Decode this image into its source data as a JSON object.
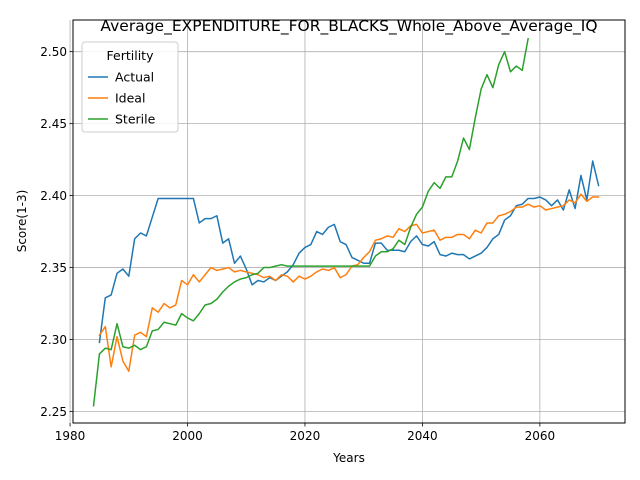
{
  "chart_data": {
    "type": "line",
    "title": "Average_EXPENDITURE_FOR_BLACKS_Whole_Above_Average_IQ",
    "xlabel": "Years",
    "ylabel": "Score(1-3)",
    "xlim": [
      1980.5,
      2074.5
    ],
    "ylim": [
      2.242,
      2.522
    ],
    "xticks": [
      1980,
      2000,
      2020,
      2040,
      2060
    ],
    "yticks": [
      2.25,
      2.3,
      2.35,
      2.4,
      2.45,
      2.5
    ],
    "xtick_labels": [
      "1980",
      "2000",
      "2020",
      "2040",
      "2060"
    ],
    "ytick_labels": [
      "2.25",
      "2.30",
      "2.35",
      "2.40",
      "2.45",
      "2.50"
    ],
    "grid": true,
    "legend": {
      "title": "Fertility",
      "position": "upper-left"
    },
    "series": [
      {
        "name": "Actual",
        "color": "#1f77b4",
        "x": [
          1985,
          1986,
          1987,
          1988,
          1989,
          1990,
          1991,
          1992,
          1993,
          1994,
          1995,
          1996,
          1997,
          1998,
          1999,
          2000,
          2001,
          2002,
          2003,
          2004,
          2005,
          2006,
          2007,
          2008,
          2009,
          2010,
          2011,
          2012,
          2013,
          2014,
          2015,
          2016,
          2017,
          2018,
          2019,
          2020,
          2021,
          2022,
          2023,
          2024,
          2025,
          2026,
          2027,
          2028,
          2029,
          2030,
          2031,
          2032,
          2033,
          2034,
          2035,
          2036,
          2037,
          2038,
          2039,
          2040,
          2041,
          2042,
          2043,
          2044,
          2045,
          2046,
          2047,
          2048,
          2049,
          2050,
          2051,
          2052,
          2053,
          2054,
          2055,
          2056,
          2057,
          2058,
          2059,
          2060,
          2061,
          2062,
          2063,
          2064,
          2065,
          2066,
          2067,
          2068,
          2069,
          2070
        ],
        "y": [
          2.298,
          2.329,
          2.331,
          2.346,
          2.349,
          2.344,
          2.37,
          2.374,
          2.372,
          2.385,
          2.398,
          2.398,
          2.398,
          2.398,
          2.398,
          2.398,
          2.398,
          2.381,
          2.384,
          2.384,
          2.386,
          2.367,
          2.37,
          2.353,
          2.358,
          2.349,
          2.338,
          2.341,
          2.34,
          2.343,
          2.341,
          2.344,
          2.347,
          2.352,
          2.36,
          2.364,
          2.366,
          2.375,
          2.373,
          2.378,
          2.38,
          2.368,
          2.366,
          2.357,
          2.355,
          2.353,
          2.353,
          2.367,
          2.367,
          2.362,
          2.362,
          2.362,
          2.361,
          2.368,
          2.372,
          2.366,
          2.365,
          2.368,
          2.359,
          2.358,
          2.36,
          2.359,
          2.359,
          2.356,
          2.358,
          2.36,
          2.364,
          2.37,
          2.373,
          2.383,
          2.386,
          2.393,
          2.394,
          2.398,
          2.398,
          2.399,
          2.397,
          2.393,
          2.397,
          2.39,
          2.404,
          2.391,
          2.414,
          2.397,
          2.424,
          2.407
        ]
      },
      {
        "name": "Ideal",
        "color": "#ff7f0e",
        "x": [
          1985,
          1986,
          1987,
          1988,
          1989,
          1990,
          1991,
          1992,
          1993,
          1994,
          1995,
          1996,
          1997,
          1998,
          1999,
          2000,
          2001,
          2002,
          2003,
          2004,
          2005,
          2006,
          2007,
          2008,
          2009,
          2010,
          2011,
          2012,
          2013,
          2014,
          2015,
          2016,
          2017,
          2018,
          2019,
          2020,
          2021,
          2022,
          2023,
          2024,
          2025,
          2026,
          2027,
          2028,
          2029,
          2030,
          2031,
          2032,
          2033,
          2034,
          2035,
          2036,
          2037,
          2038,
          2039,
          2040,
          2041,
          2042,
          2043,
          2044,
          2045,
          2046,
          2047,
          2048,
          2049,
          2050,
          2051,
          2052,
          2053,
          2054,
          2055,
          2056,
          2057,
          2058,
          2059,
          2060,
          2061,
          2062,
          2063,
          2064,
          2065,
          2066,
          2067,
          2068,
          2069,
          2070
        ],
        "y": [
          2.303,
          2.309,
          2.281,
          2.302,
          2.285,
          2.278,
          2.303,
          2.305,
          2.302,
          2.322,
          2.319,
          2.325,
          2.322,
          2.324,
          2.341,
          2.338,
          2.345,
          2.34,
          2.345,
          2.35,
          2.348,
          2.349,
          2.35,
          2.347,
          2.348,
          2.347,
          2.346,
          2.345,
          2.343,
          2.344,
          2.341,
          2.345,
          2.344,
          2.34,
          2.344,
          2.342,
          2.344,
          2.347,
          2.349,
          2.348,
          2.35,
          2.343,
          2.345,
          2.351,
          2.352,
          2.357,
          2.361,
          2.369,
          2.37,
          2.372,
          2.371,
          2.377,
          2.375,
          2.379,
          2.38,
          2.374,
          2.375,
          2.376,
          2.369,
          2.371,
          2.371,
          2.373,
          2.373,
          2.37,
          2.376,
          2.374,
          2.381,
          2.381,
          2.386,
          2.387,
          2.389,
          2.392,
          2.392,
          2.394,
          2.392,
          2.393,
          2.39,
          2.391,
          2.392,
          2.393,
          2.397,
          2.395,
          2.401,
          2.396,
          2.399,
          2.399
        ]
      },
      {
        "name": "Sterile",
        "color": "#2ca02c",
        "x": [
          1984,
          1985,
          1986,
          1987,
          1988,
          1989,
          1990,
          1991,
          1992,
          1993,
          1994,
          1995,
          1996,
          1997,
          1998,
          1999,
          2000,
          2001,
          2002,
          2003,
          2004,
          2005,
          2006,
          2007,
          2008,
          2009,
          2010,
          2011,
          2012,
          2013,
          2014,
          2015,
          2016,
          2017,
          2018,
          2019,
          2020,
          2021,
          2022,
          2023,
          2024,
          2025,
          2026,
          2027,
          2028,
          2029,
          2030,
          2031,
          2032,
          2033,
          2034,
          2035,
          2036,
          2037,
          2038,
          2039,
          2040,
          2041,
          2042,
          2043,
          2044,
          2045,
          2046,
          2047,
          2048,
          2049,
          2050,
          2051,
          2052,
          2053,
          2054,
          2055,
          2056,
          2057,
          2058
        ],
        "y": [
          2.254,
          2.29,
          2.294,
          2.293,
          2.311,
          2.295,
          2.294,
          2.296,
          2.293,
          2.295,
          2.306,
          2.307,
          2.312,
          2.311,
          2.31,
          2.318,
          2.315,
          2.313,
          2.318,
          2.324,
          2.325,
          2.328,
          2.333,
          2.337,
          2.34,
          2.342,
          2.343,
          2.345,
          2.346,
          2.35,
          2.35,
          2.351,
          2.352,
          2.351,
          2.351,
          2.351,
          2.351,
          2.351,
          2.351,
          2.351,
          2.351,
          2.351,
          2.351,
          2.351,
          2.351,
          2.351,
          2.351,
          2.351,
          2.358,
          2.361,
          2.361,
          2.363,
          2.369,
          2.366,
          2.378,
          2.387,
          2.392,
          2.403,
          2.409,
          2.405,
          2.413,
          2.413,
          2.424,
          2.44,
          2.432,
          2.454,
          2.474,
          2.484,
          2.475,
          2.491,
          2.5,
          2.486,
          2.49,
          2.487,
          2.509
        ]
      }
    ]
  }
}
